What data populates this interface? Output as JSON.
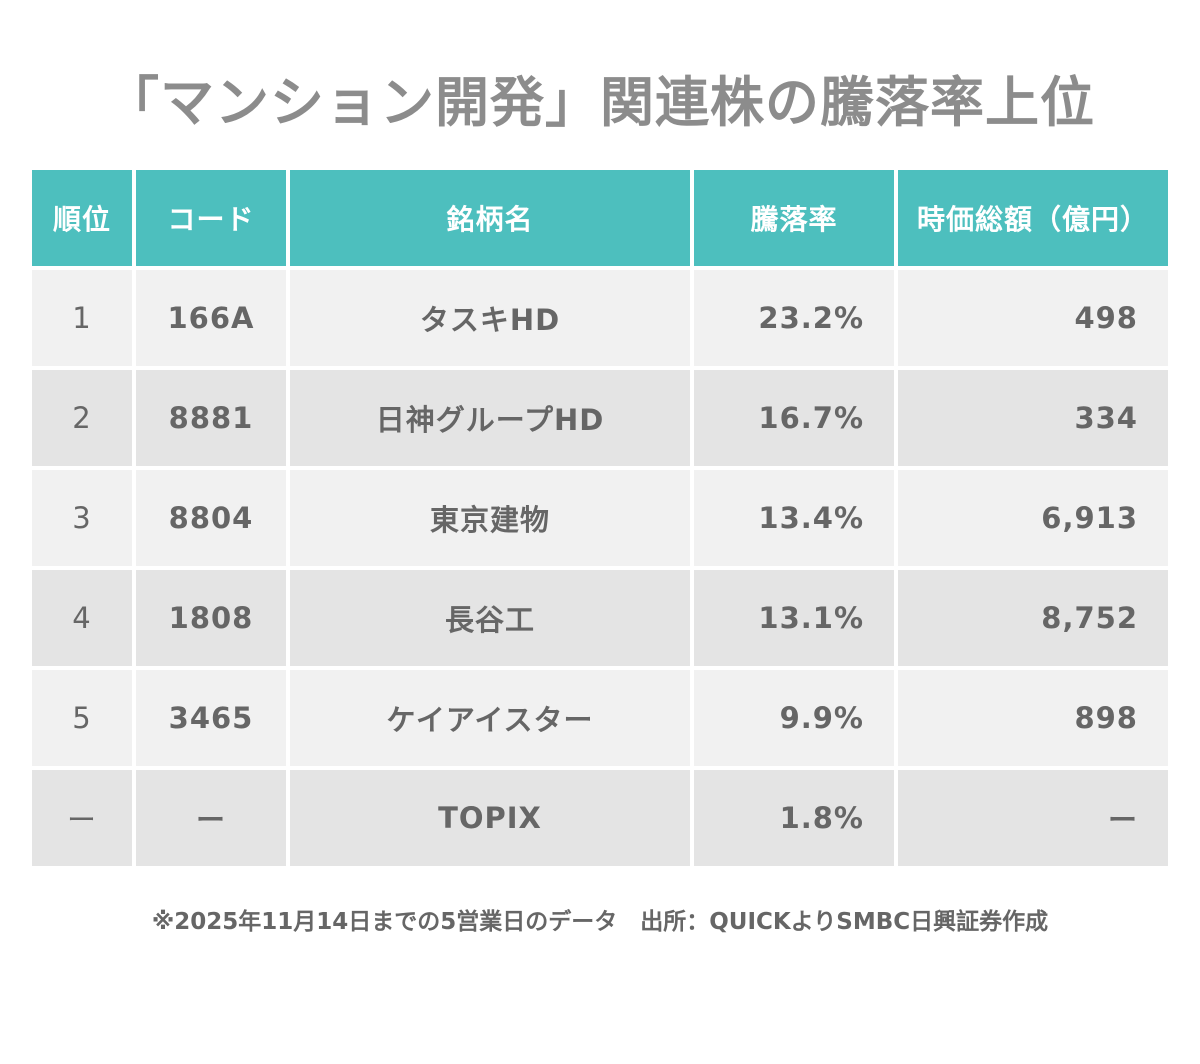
{
  "title": "「マンション開発」関連株の騰落率上位",
  "chart_data": {
    "type": "table",
    "title": "「マンション開発」関連株の騰落率上位",
    "columns": [
      "順位",
      "コード",
      "銘柄名",
      "騰落率",
      "時価総額（億円）"
    ],
    "rows": [
      [
        "1",
        "166A",
        "タスキHD",
        "23.2%",
        "498"
      ],
      [
        "2",
        "8881",
        "日神グループHD",
        "16.7%",
        "334"
      ],
      [
        "3",
        "8804",
        "東京建物",
        "13.4%",
        "6,913"
      ],
      [
        "4",
        "1808",
        "長谷工",
        "13.1%",
        "8,752"
      ],
      [
        "5",
        "3465",
        "ケイアイスター",
        "9.9%",
        "898"
      ],
      [
        "ー",
        "ー",
        "TOPIX",
        "1.8%",
        "ー"
      ]
    ]
  },
  "colors": {
    "header": "#4dbfbe",
    "row_light": "#f1f1f1",
    "row_dark": "#e4e4e4",
    "title": "#8c8c8c",
    "text": "#666666"
  },
  "note": "※2025年11月14日までの5営業日のデータ　出所：QUICKよりSMBC日興証券作成"
}
